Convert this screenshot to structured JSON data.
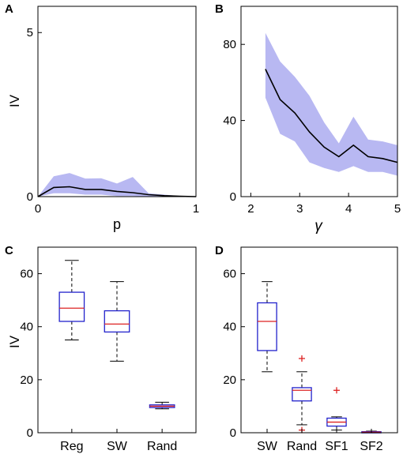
{
  "panels": {
    "A": {
      "label": "A"
    },
    "B": {
      "label": "B"
    },
    "C": {
      "label": "C"
    },
    "D": {
      "label": "D"
    }
  },
  "colors": {
    "band": "#b8b8f2",
    "line": "#000000",
    "box": "#2222cc",
    "median": "#dd2222",
    "outlier": "#dd2222",
    "whisker": "#000000"
  },
  "chart_data": [
    {
      "id": "A",
      "type": "line",
      "xlabel": "p",
      "ylabel": "IV",
      "xlim": [
        0,
        1
      ],
      "ylim": [
        0,
        5.8
      ],
      "xticks": [
        0,
        1
      ],
      "yticks": [
        0,
        5
      ],
      "legend": "none",
      "series": [
        {
          "x": [
            0,
            0.1,
            0.2,
            0.3,
            0.4,
            0.5,
            0.6,
            0.7,
            0.8,
            0.9,
            1.0
          ],
          "y": [
            0.0,
            0.28,
            0.3,
            0.22,
            0.22,
            0.16,
            0.12,
            0.06,
            0.03,
            0.01,
            0.0
          ],
          "lower": [
            0.0,
            0.1,
            0.1,
            0.06,
            0.06,
            0.02,
            0.02,
            0.0,
            0.0,
            0.0,
            0.0
          ],
          "upper": [
            0.0,
            0.62,
            0.72,
            0.55,
            0.56,
            0.4,
            0.6,
            0.1,
            0.06,
            0.02,
            0.0
          ]
        }
      ]
    },
    {
      "id": "B",
      "type": "line",
      "xlabel": "γ",
      "ylabel": "",
      "xlim": [
        1.8,
        5
      ],
      "ylim": [
        0,
        100
      ],
      "xticks": [
        2,
        3,
        4,
        5
      ],
      "yticks": [
        0,
        40,
        80
      ],
      "legend": "none",
      "series": [
        {
          "x": [
            2.3,
            2.6,
            2.9,
            3.2,
            3.5,
            3.8,
            4.1,
            4.4,
            4.7,
            5.0
          ],
          "y": [
            67,
            51,
            44,
            34,
            26,
            21,
            27,
            21,
            20,
            18
          ],
          "lower": [
            52,
            33,
            29,
            18,
            15,
            13,
            16,
            13,
            13,
            11
          ],
          "upper": [
            86,
            71,
            63,
            53,
            39,
            28,
            42,
            30,
            29,
            27
          ]
        }
      ]
    },
    {
      "id": "C",
      "type": "box",
      "xlabel": "",
      "ylabel": "IV",
      "ylim": [
        0,
        70
      ],
      "yticks": [
        0,
        20,
        40,
        60
      ],
      "categories": [
        "Reg",
        "SW",
        "Rand"
      ],
      "boxes": [
        {
          "min": 35,
          "q1": 42,
          "median": 47,
          "q3": 53,
          "max": 65,
          "outliers": []
        },
        {
          "min": 27,
          "q1": 38,
          "median": 41,
          "q3": 46,
          "max": 57,
          "outliers": []
        },
        {
          "min": 9,
          "q1": 9.5,
          "median": 10,
          "q3": 10.5,
          "max": 11.5,
          "outliers": []
        }
      ]
    },
    {
      "id": "D",
      "type": "box",
      "xlabel": "",
      "ylabel": "",
      "ylim": [
        0,
        70
      ],
      "yticks": [
        0,
        20,
        40,
        60
      ],
      "categories": [
        "SW",
        "Rand",
        "SF1",
        "SF2"
      ],
      "boxes": [
        {
          "min": 23,
          "q1": 31,
          "median": 42,
          "q3": 49,
          "max": 57,
          "outliers": []
        },
        {
          "min": 3,
          "q1": 12,
          "median": 16,
          "q3": 17,
          "max": 23,
          "outliers": [
            28,
            1
          ]
        },
        {
          "min": 1,
          "q1": 2.5,
          "median": 4,
          "q3": 5.5,
          "max": 6,
          "outliers": [
            16
          ]
        },
        {
          "min": 0,
          "q1": 0,
          "median": 0.2,
          "q3": 0.4,
          "max": 0.6,
          "outliers": []
        }
      ]
    }
  ]
}
